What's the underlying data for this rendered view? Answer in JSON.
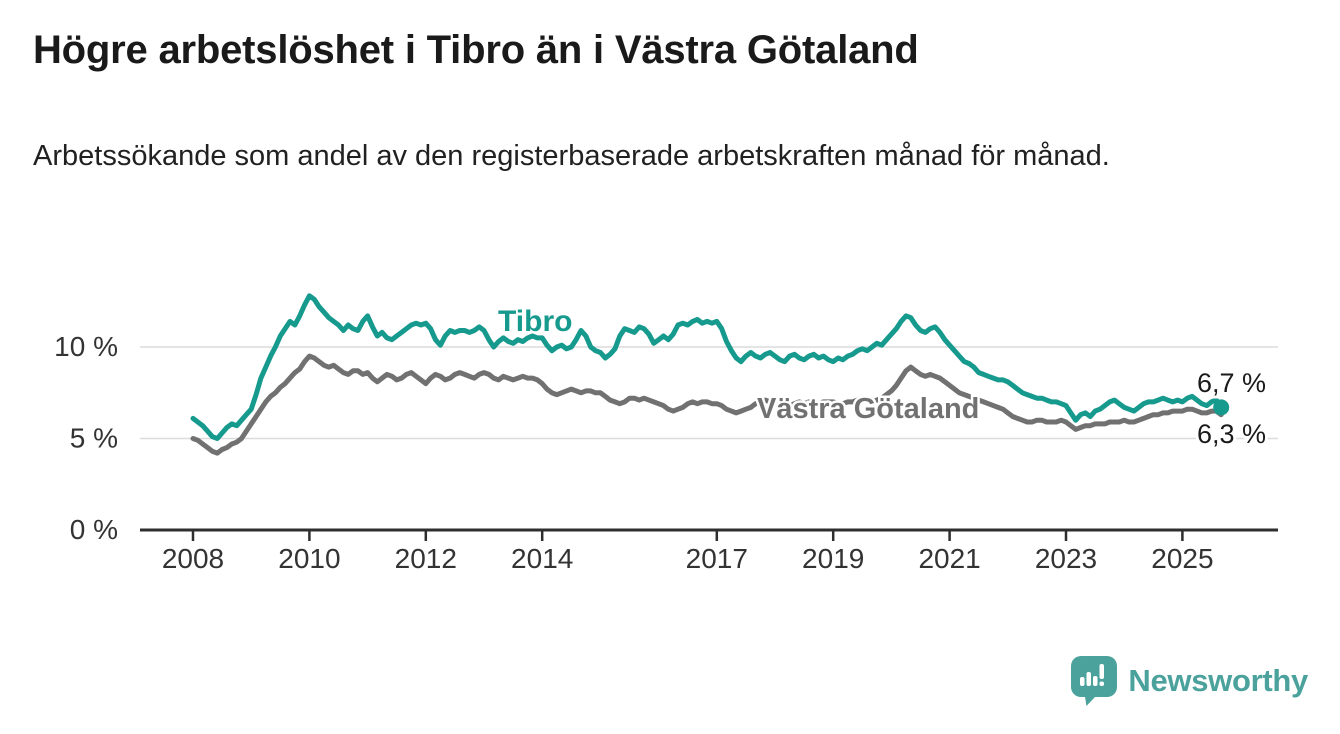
{
  "header": {
    "title": "Högre arbetslöshet i Tibro än i Västra Götaland",
    "subtitle": "Arbetssökande som andel av den registerbaserade arbetskraften månad för månad."
  },
  "chart_data": {
    "type": "line",
    "unit": "%",
    "x_unit": "month",
    "x_start": "2008-01",
    "x_end": "2025-09",
    "ylim": [
      0,
      13.5
    ],
    "grid": "horizontal",
    "gridline_values": [
      5,
      10
    ],
    "yticks": [
      {
        "value": 0,
        "label": "0 %"
      },
      {
        "value": 5,
        "label": "5 %"
      },
      {
        "value": 10,
        "label": "10 %"
      }
    ],
    "xticks": [
      {
        "value": 2008,
        "label": "2008"
      },
      {
        "value": 2010,
        "label": "2010"
      },
      {
        "value": 2012,
        "label": "2012"
      },
      {
        "value": 2014,
        "label": "2014"
      },
      {
        "value": 2017,
        "label": "2017"
      },
      {
        "value": 2019,
        "label": "2019"
      },
      {
        "value": 2021,
        "label": "2021"
      },
      {
        "value": 2023,
        "label": "2023"
      },
      {
        "value": 2025,
        "label": "2025"
      }
    ],
    "series": [
      {
        "name": "Västra Götaland",
        "color": "#717171",
        "end_label": "6,3 %",
        "end_dot": false,
        "values": [
          5.0,
          4.9,
          4.7,
          4.5,
          4.3,
          4.2,
          4.4,
          4.5,
          4.7,
          4.8,
          5.0,
          5.4,
          5.8,
          6.2,
          6.6,
          7.0,
          7.3,
          7.5,
          7.8,
          8.0,
          8.3,
          8.6,
          8.8,
          9.2,
          9.5,
          9.4,
          9.2,
          9.0,
          8.9,
          9.0,
          8.8,
          8.6,
          8.5,
          8.7,
          8.7,
          8.5,
          8.6,
          8.3,
          8.1,
          8.3,
          8.5,
          8.4,
          8.2,
          8.3,
          8.5,
          8.6,
          8.4,
          8.2,
          8.0,
          8.3,
          8.5,
          8.4,
          8.2,
          8.3,
          8.5,
          8.6,
          8.5,
          8.4,
          8.3,
          8.5,
          8.6,
          8.5,
          8.3,
          8.2,
          8.4,
          8.3,
          8.2,
          8.3,
          8.4,
          8.3,
          8.3,
          8.2,
          8.0,
          7.7,
          7.5,
          7.4,
          7.5,
          7.6,
          7.7,
          7.6,
          7.5,
          7.6,
          7.6,
          7.5,
          7.5,
          7.3,
          7.1,
          7.0,
          6.9,
          7.0,
          7.2,
          7.2,
          7.1,
          7.2,
          7.1,
          7.0,
          6.9,
          6.8,
          6.6,
          6.5,
          6.6,
          6.7,
          6.9,
          7.0,
          6.9,
          7.0,
          7.0,
          6.9,
          6.9,
          6.8,
          6.6,
          6.5,
          6.4,
          6.5,
          6.6,
          6.7,
          6.9,
          7.0,
          7.1,
          7.0,
          7.0,
          6.9,
          6.8,
          6.8,
          6.9,
          7.0,
          6.9,
          7.0,
          6.9,
          6.9,
          7.0,
          7.0,
          7.0,
          6.9,
          6.9,
          7.0,
          7.0,
          7.1,
          7.1,
          7.1,
          7.0,
          7.1,
          7.2,
          7.4,
          7.6,
          7.9,
          8.3,
          8.7,
          8.9,
          8.7,
          8.5,
          8.4,
          8.5,
          8.4,
          8.3,
          8.1,
          7.9,
          7.7,
          7.5,
          7.4,
          7.3,
          7.2,
          7.1,
          7.0,
          6.9,
          6.8,
          6.7,
          6.6,
          6.4,
          6.2,
          6.1,
          6.0,
          5.9,
          5.9,
          6.0,
          6.0,
          5.9,
          5.9,
          5.9,
          6.0,
          5.9,
          5.7,
          5.5,
          5.6,
          5.7,
          5.7,
          5.8,
          5.8,
          5.8,
          5.9,
          5.9,
          5.9,
          6.0,
          5.9,
          5.9,
          6.0,
          6.1,
          6.2,
          6.3,
          6.3,
          6.4,
          6.4,
          6.5,
          6.5,
          6.5,
          6.6,
          6.6,
          6.5,
          6.4,
          6.4,
          6.5,
          6.5,
          6.3
        ]
      },
      {
        "name": "Tibro",
        "color": "#179a8e",
        "end_label": "6,7 %",
        "end_dot": true,
        "values": [
          6.1,
          5.9,
          5.7,
          5.4,
          5.1,
          5.0,
          5.3,
          5.6,
          5.8,
          5.7,
          6.0,
          6.3,
          6.6,
          7.4,
          8.3,
          8.9,
          9.5,
          10.0,
          10.6,
          11.0,
          11.4,
          11.2,
          11.7,
          12.3,
          12.8,
          12.6,
          12.2,
          11.9,
          11.6,
          11.4,
          11.2,
          10.9,
          11.2,
          11.0,
          10.9,
          11.4,
          11.7,
          11.1,
          10.6,
          10.8,
          10.5,
          10.4,
          10.6,
          10.8,
          11.0,
          11.2,
          11.3,
          11.2,
          11.3,
          11.0,
          10.4,
          10.1,
          10.6,
          10.9,
          10.8,
          10.9,
          10.9,
          10.8,
          10.9,
          11.1,
          10.9,
          10.4,
          10.0,
          10.3,
          10.5,
          10.3,
          10.2,
          10.4,
          10.3,
          10.5,
          10.6,
          10.5,
          10.5,
          10.1,
          9.8,
          10.0,
          10.1,
          9.9,
          10.0,
          10.4,
          10.9,
          10.6,
          10.0,
          9.8,
          9.7,
          9.4,
          9.6,
          9.9,
          10.6,
          11.0,
          10.9,
          10.8,
          11.1,
          11.0,
          10.7,
          10.2,
          10.4,
          10.6,
          10.4,
          10.7,
          11.2,
          11.3,
          11.2,
          11.4,
          11.5,
          11.3,
          11.4,
          11.3,
          11.4,
          11.0,
          10.3,
          9.8,
          9.4,
          9.2,
          9.5,
          9.7,
          9.5,
          9.4,
          9.6,
          9.7,
          9.5,
          9.3,
          9.2,
          9.5,
          9.6,
          9.4,
          9.3,
          9.5,
          9.6,
          9.4,
          9.5,
          9.3,
          9.2,
          9.4,
          9.3,
          9.5,
          9.6,
          9.8,
          9.9,
          9.8,
          10.0,
          10.2,
          10.1,
          10.4,
          10.7,
          11.0,
          11.4,
          11.7,
          11.6,
          11.2,
          10.9,
          10.8,
          11.0,
          11.1,
          10.8,
          10.4,
          10.1,
          9.8,
          9.5,
          9.2,
          9.1,
          8.9,
          8.6,
          8.5,
          8.4,
          8.3,
          8.2,
          8.2,
          8.1,
          7.9,
          7.7,
          7.5,
          7.4,
          7.3,
          7.2,
          7.2,
          7.1,
          7.0,
          7.0,
          6.9,
          6.8,
          6.4,
          6.0,
          6.3,
          6.4,
          6.2,
          6.5,
          6.6,
          6.8,
          7.0,
          7.1,
          6.9,
          6.7,
          6.6,
          6.5,
          6.7,
          6.9,
          7.0,
          7.0,
          7.1,
          7.2,
          7.1,
          7.0,
          7.1,
          7.0,
          7.2,
          7.3,
          7.1,
          6.9,
          6.8,
          7.0,
          7.1,
          6.7
        ]
      }
    ],
    "colors": {
      "grid": "#dbdbdb",
      "axis": "#2e2e2e",
      "tick_text": "#333333",
      "end_label_text": "#1a1a1a"
    }
  },
  "footer": {
    "brand": "Newsworthy",
    "brand_color": "#4ba29c"
  }
}
